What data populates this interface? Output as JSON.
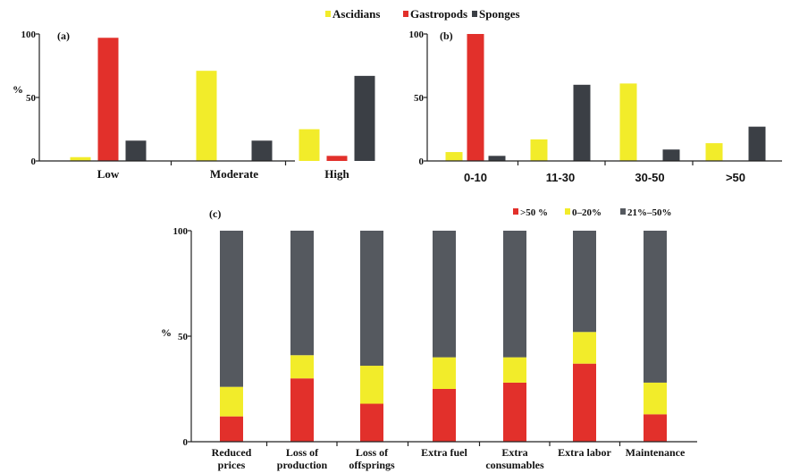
{
  "legend_top": [
    {
      "label": "Ascidians",
      "color": "#f2ec2a"
    },
    {
      "label": "Gastropods",
      "color": "#e2302b"
    },
    {
      "label": "Sponges",
      "color": "#3b3f45"
    }
  ],
  "legend_c": [
    {
      "label": ">50 %",
      "color": "#e2302b"
    },
    {
      "label": "0–20%",
      "color": "#f2ec2a"
    },
    {
      "label": "21%–50%",
      "color": "#55595f"
    }
  ],
  "chart_data": [
    {
      "panel": "(a)",
      "type": "bar",
      "ylabel": "%",
      "ylim": [
        0,
        100
      ],
      "yticks": [
        "0",
        "50",
        "100"
      ],
      "categories": [
        "Low",
        "Moderate",
        "High"
      ],
      "series": [
        {
          "name": "Ascidians",
          "color": "#f2ec2a",
          "values": [
            3,
            71,
            25
          ]
        },
        {
          "name": "Gastropods",
          "color": "#e2302b",
          "values": [
            97,
            0,
            4
          ]
        },
        {
          "name": "Sponges",
          "color": "#3b3f45",
          "values": [
            16,
            16,
            67
          ]
        }
      ]
    },
    {
      "panel": "(b)",
      "type": "bar",
      "ylim": [
        0,
        100
      ],
      "yticks": [
        "0",
        "50",
        "100"
      ],
      "categories": [
        "0-10",
        "11-30",
        "30-50",
        ">50"
      ],
      "series": [
        {
          "name": "Ascidians",
          "color": "#f2ec2a",
          "values": [
            7,
            17,
            61,
            14
          ]
        },
        {
          "name": "Gastropods",
          "color": "#e2302b",
          "values": [
            100,
            0,
            0,
            0
          ]
        },
        {
          "name": "Sponges",
          "color": "#3b3f45",
          "values": [
            4,
            60,
            9,
            27
          ]
        }
      ]
    },
    {
      "panel": "(c)",
      "type": "bar",
      "stacked": true,
      "ylabel": "%",
      "ylim": [
        0,
        100
      ],
      "yticks": [
        "0",
        "50",
        "100"
      ],
      "categories": [
        [
          "Reduced",
          "prices"
        ],
        [
          "Loss of",
          "production"
        ],
        [
          "Loss of",
          "offsprings"
        ],
        [
          "Extra fuel"
        ],
        [
          "Extra",
          "consumables"
        ],
        [
          "Extra labor"
        ],
        [
          "Maintenance"
        ]
      ],
      "series": [
        {
          "name": ">50 %",
          "color": "#e2302b",
          "values": [
            12,
            30,
            18,
            25,
            28,
            37,
            13
          ]
        },
        {
          "name": "0–20%",
          "color": "#f2ec2a",
          "values": [
            14,
            11,
            18,
            15,
            12,
            15,
            15
          ]
        },
        {
          "name": "21%–50%",
          "color": "#55595f",
          "values": [
            74,
            59,
            64,
            60,
            60,
            48,
            72
          ]
        }
      ]
    }
  ]
}
